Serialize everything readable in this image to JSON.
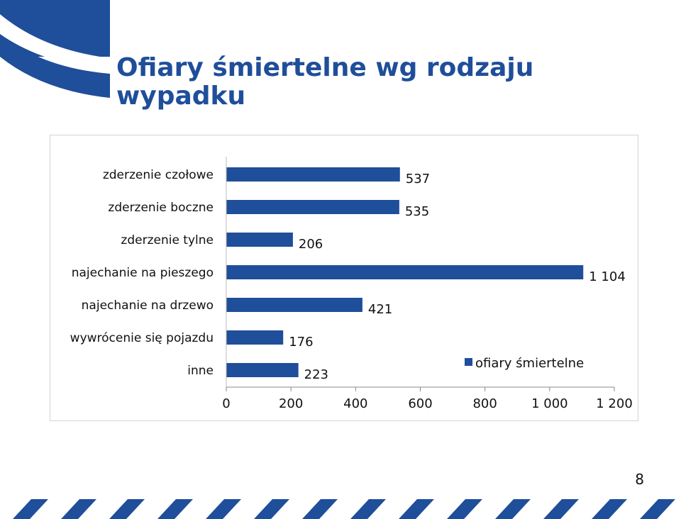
{
  "slide": {
    "title": "Ofiary śmiertelne wg rodzaju wypadku",
    "page_number": "8",
    "colors": {
      "title": "#1f4e9a",
      "accent": "#1f4e9a",
      "bar": "#1f4e9a"
    }
  },
  "chart_data": {
    "type": "bar",
    "orientation": "horizontal",
    "title": "",
    "categories": [
      "zderzenie czołowe",
      "zderzenie boczne",
      "zderzenie tylne",
      "najechanie na pieszego",
      "najechanie na drzewo",
      "wywrócenie się pojazdu",
      "inne"
    ],
    "series": [
      {
        "name": "ofiary śmiertelne",
        "values": [
          537,
          535,
          206,
          1104,
          421,
          176,
          223
        ],
        "value_labels": [
          "537",
          "535",
          "206",
          "1 104",
          "421",
          "176",
          "223"
        ],
        "color": "#1f4e9a"
      }
    ],
    "xlim": [
      0,
      1200
    ],
    "ticks": [
      0,
      200,
      400,
      600,
      800,
      1000,
      1200
    ],
    "tick_labels": [
      "0",
      "200",
      "400",
      "600",
      "800",
      "1 000",
      "1 200"
    ],
    "grid": false,
    "legend": "bottom-right",
    "xlabel": "",
    "ylabel": ""
  }
}
